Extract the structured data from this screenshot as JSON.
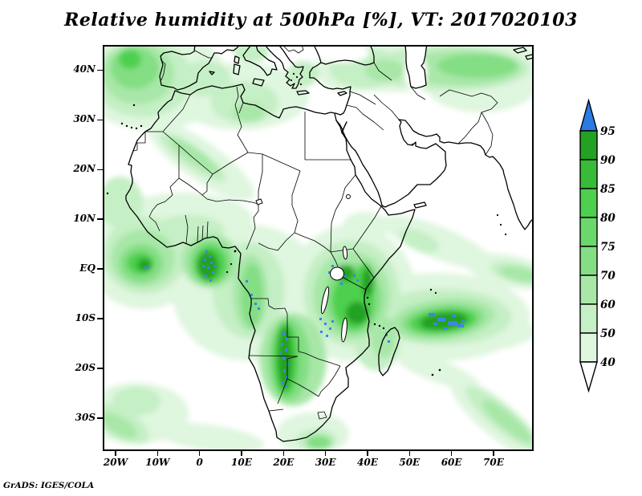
{
  "title": "Relative humidity at 500hPa [%], VT: 2017020103",
  "credit": "GrADS: IGES/COLA",
  "map": {
    "x_axis_ticks": [
      "20W",
      "10W",
      "0",
      "10E",
      "20E",
      "30E",
      "40E",
      "50E",
      "60E",
      "70E"
    ],
    "y_axis_ticks": [
      "40N",
      "30N",
      "20N",
      "10N",
      "EQ",
      "10S",
      "20S",
      "30S"
    ]
  },
  "colorbar": {
    "tick_labels": [
      "95",
      "90",
      "85",
      "80",
      "75",
      "70",
      "60",
      "50",
      "40"
    ],
    "segment_colors_top_to_bottom": [
      "#23A123",
      "#38BC38",
      "#4DD04D",
      "#6BD86B",
      "#84DE84",
      "#A8E7A8",
      "#C5EFC5",
      "#DFF6DF"
    ],
    "over_color": "#2B7BE4",
    "under_color": "#FFFFFF"
  },
  "chart_data": {
    "type": "heatmap",
    "title": "Relative humidity at 500hPa [%], VT: 2017020103",
    "variable": "Relative humidity",
    "pressure_level": "500hPa",
    "units": "%",
    "valid_time": "2017020103",
    "source_label": "GrADS: IGES/COLA",
    "projection": "lat-lon (equirectangular), Africa-centered",
    "x_axis": {
      "label": "longitude",
      "tick_labels": [
        "20W",
        "10W",
        "0",
        "10E",
        "20E",
        "30E",
        "40E",
        "50E",
        "60E",
        "70E"
      ],
      "range_deg_east": [
        -23,
        79.5
      ]
    },
    "y_axis": {
      "label": "latitude",
      "tick_labels": [
        "40N",
        "30N",
        "20N",
        "10N",
        "EQ",
        "10S",
        "20S",
        "30S"
      ],
      "range_deg_north": [
        -36.5,
        45
      ]
    },
    "color_scale": {
      "levels_percent": [
        40,
        50,
        60,
        70,
        75,
        80,
        85,
        90,
        95
      ],
      "band_colors_low_to_high": [
        "#DFF6DF",
        "#C5EFC5",
        "#A8E7A8",
        "#84DE84",
        "#6BD86B",
        "#4DD04D",
        "#38BC38",
        "#23A123"
      ],
      "over_95_color": "#2B7BE4",
      "under_40_color": "#FFFFFF",
      "legend_position": "right vertical bar with end triangles"
    },
    "high_humidity_features": [
      {
        "region": "Gulf of Guinea off Ghana/Nigeria",
        "lon": 2,
        "lat": 1,
        "value_percent": "95+"
      },
      {
        "region": "Eastern tropical Atlantic near equator",
        "lon": -13,
        "lat": -1,
        "value_percent": "90-95"
      },
      {
        "region": "Gabon-Congo coastal strip",
        "lon": 11,
        "lat": -6,
        "value_percent": "90-95"
      },
      {
        "region": "Angola-Zambia / Namibia-Botswana band",
        "lon": 21,
        "lat": -17,
        "value_percent": "95+"
      },
      {
        "region": "Lake Victoria / Tanzania highlands",
        "lon": 32,
        "lat": -3,
        "value_percent": "95+"
      },
      {
        "region": "SW Indian Ocean east of Madagascar",
        "lon": 58,
        "lat": -10,
        "value_percent": "95+"
      },
      {
        "region": "NE Atlantic west of Iberia and Morocco",
        "lon": -20,
        "lat": 38,
        "value_percent": "80-85"
      },
      {
        "region": "Central Asia band north of Iran",
        "lon": 60,
        "lat": 41,
        "value_percent": "75-85"
      },
      {
        "region": "South Atlantic frontal streak",
        "lon": -21,
        "lat": -31,
        "value_percent": "70-75"
      },
      {
        "region": "SW Indian Ocean frontal streak (bottom right)",
        "lon": 71,
        "lat": -33,
        "value_percent": "70-75"
      }
    ],
    "grid": false
  }
}
